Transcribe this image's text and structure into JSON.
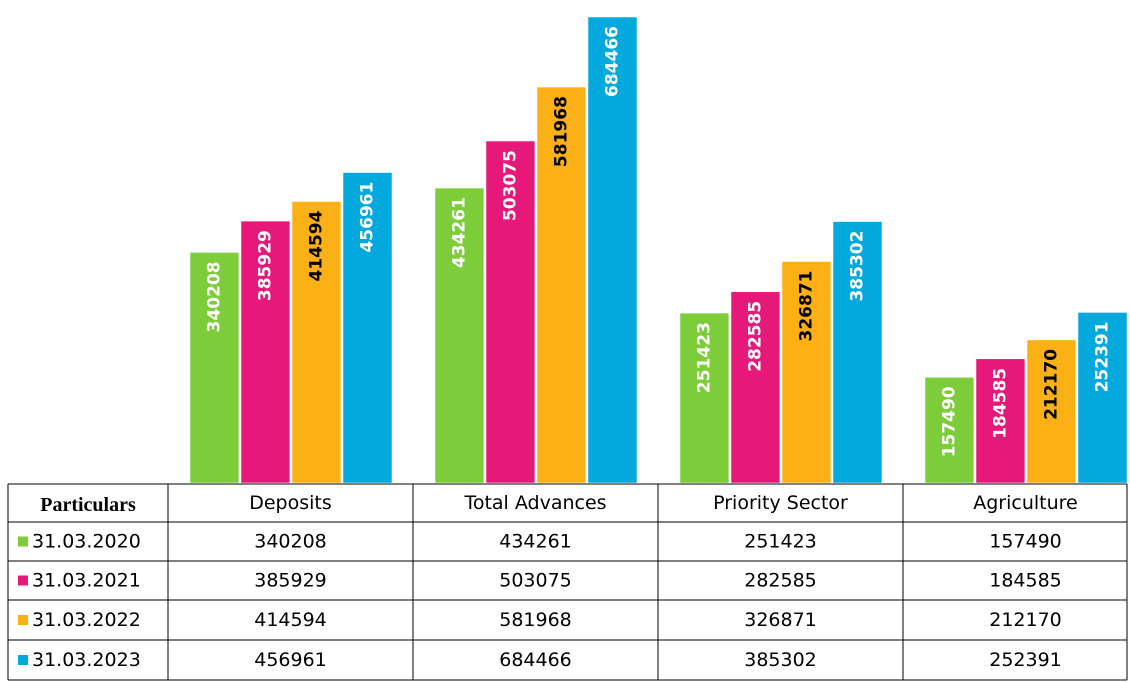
{
  "chart_data": {
    "type": "bar",
    "table_header": "Particulars",
    "categories": [
      "Deposits",
      "Total Advances",
      "Priority Sector",
      "Agriculture"
    ],
    "series": [
      {
        "name": "31.03.2020",
        "color": "#7dcc3a",
        "label_color": "#ffffff",
        "values": [
          340208,
          434261,
          251423,
          157490
        ]
      },
      {
        "name": "31.03.2021",
        "color": "#e6197a",
        "label_color": "#ffffff",
        "values": [
          385929,
          503075,
          282585,
          184585
        ]
      },
      {
        "name": "31.03.2022",
        "color": "#fbb016",
        "label_color": "#000000",
        "values": [
          414594,
          581968,
          326871,
          212170
        ]
      },
      {
        "name": "31.03.2023",
        "color": "#03a9dc",
        "label_color": "#ffffff",
        "values": [
          456961,
          684466,
          385302,
          252391
        ]
      }
    ]
  }
}
